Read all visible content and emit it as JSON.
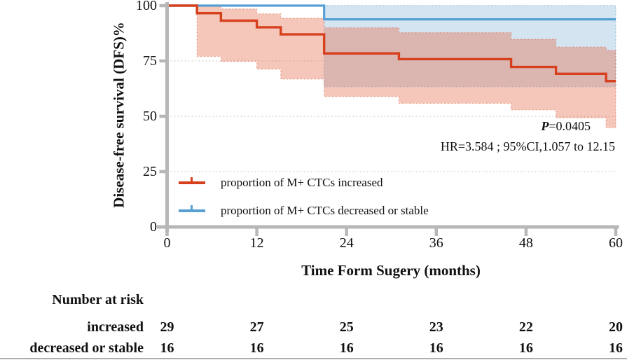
{
  "chart_data": {
    "type": "line",
    "subtype": "kaplan-meier-step-with-ci",
    "title": "",
    "xlabel": "Time Form Sugery (months)",
    "ylabel": "Disease-free survival (DFS)%",
    "xlim": [
      0,
      60
    ],
    "ylim": [
      0,
      100
    ],
    "xticks": [
      "0",
      "12",
      "24",
      "36",
      "48",
      "60"
    ],
    "yticks": [
      "0",
      "25",
      "50",
      "75",
      "100"
    ],
    "grid": "dotted-horizontal-at-25-50-75-100",
    "legend_position": "inside-lower-left",
    "series": [
      {
        "name": "proportion of M+ CTCs increased",
        "color": "#d6401d",
        "steps": [
          [
            0,
            100
          ],
          [
            4,
            96.6
          ],
          [
            7.2,
            93.2
          ],
          [
            12,
            90.2
          ],
          [
            15.2,
            87.0
          ],
          [
            21,
            78.4
          ],
          [
            31,
            75.8
          ],
          [
            46,
            72.3
          ],
          [
            52,
            69.2
          ],
          [
            58.7,
            65.9
          ]
        ],
        "end_x": 60,
        "ci_steps": [
          [
            4,
            100,
            77
          ],
          [
            7.2,
            98.5,
            74.8
          ],
          [
            12,
            96.3,
            71.3
          ],
          [
            15.2,
            94.3,
            66.8
          ],
          [
            21,
            90.0,
            58.9
          ],
          [
            31,
            87.8,
            55.8
          ],
          [
            46,
            84.8,
            52.9
          ],
          [
            52,
            81.3,
            49.3
          ],
          [
            58.7,
            79.8,
            44.8
          ]
        ],
        "ci_fill": "rgba(230,113,83,0.40)",
        "ci_edge": "rgba(214,64,29,0.35)"
      },
      {
        "name": "proportion of M+ CTCs decreased or stable",
        "color": "#57a0d3",
        "steps": [
          [
            0,
            100
          ],
          [
            21,
            93.8
          ]
        ],
        "end_x": 60,
        "ci_steps": [
          [
            4,
            100,
            100
          ],
          [
            21,
            100,
            63.4
          ]
        ],
        "ci_fill": "#d4e5f1",
        "ci_edge": "rgba(87,160,211,0.45)"
      }
    ],
    "annotations": {
      "p_label": "P",
      "p_value": "=0.0405",
      "hr_text": "HR=3.584 ; 95%CI,1.057 to 12.15"
    }
  },
  "legend": {
    "items": [
      {
        "label": "proportion of M+ CTCs increased",
        "color": "#d6401d"
      },
      {
        "label": "proportion of M+ CTCs decreased or stable",
        "color": "#57a0d3"
      }
    ]
  },
  "number_at_risk": {
    "title": "Number at risk",
    "rows": [
      {
        "label": "increased",
        "values": [
          "29",
          "27",
          "25",
          "23",
          "22",
          "20"
        ]
      },
      {
        "label": "decreased or stable",
        "values": [
          "16",
          "16",
          "16",
          "16",
          "16",
          "16"
        ]
      }
    ]
  },
  "styles": {
    "axis_color": "#b7b7b7",
    "grid_color": "#d6d6d6",
    "text_color": "#111111",
    "bottom_rule_color": "#adadad"
  }
}
